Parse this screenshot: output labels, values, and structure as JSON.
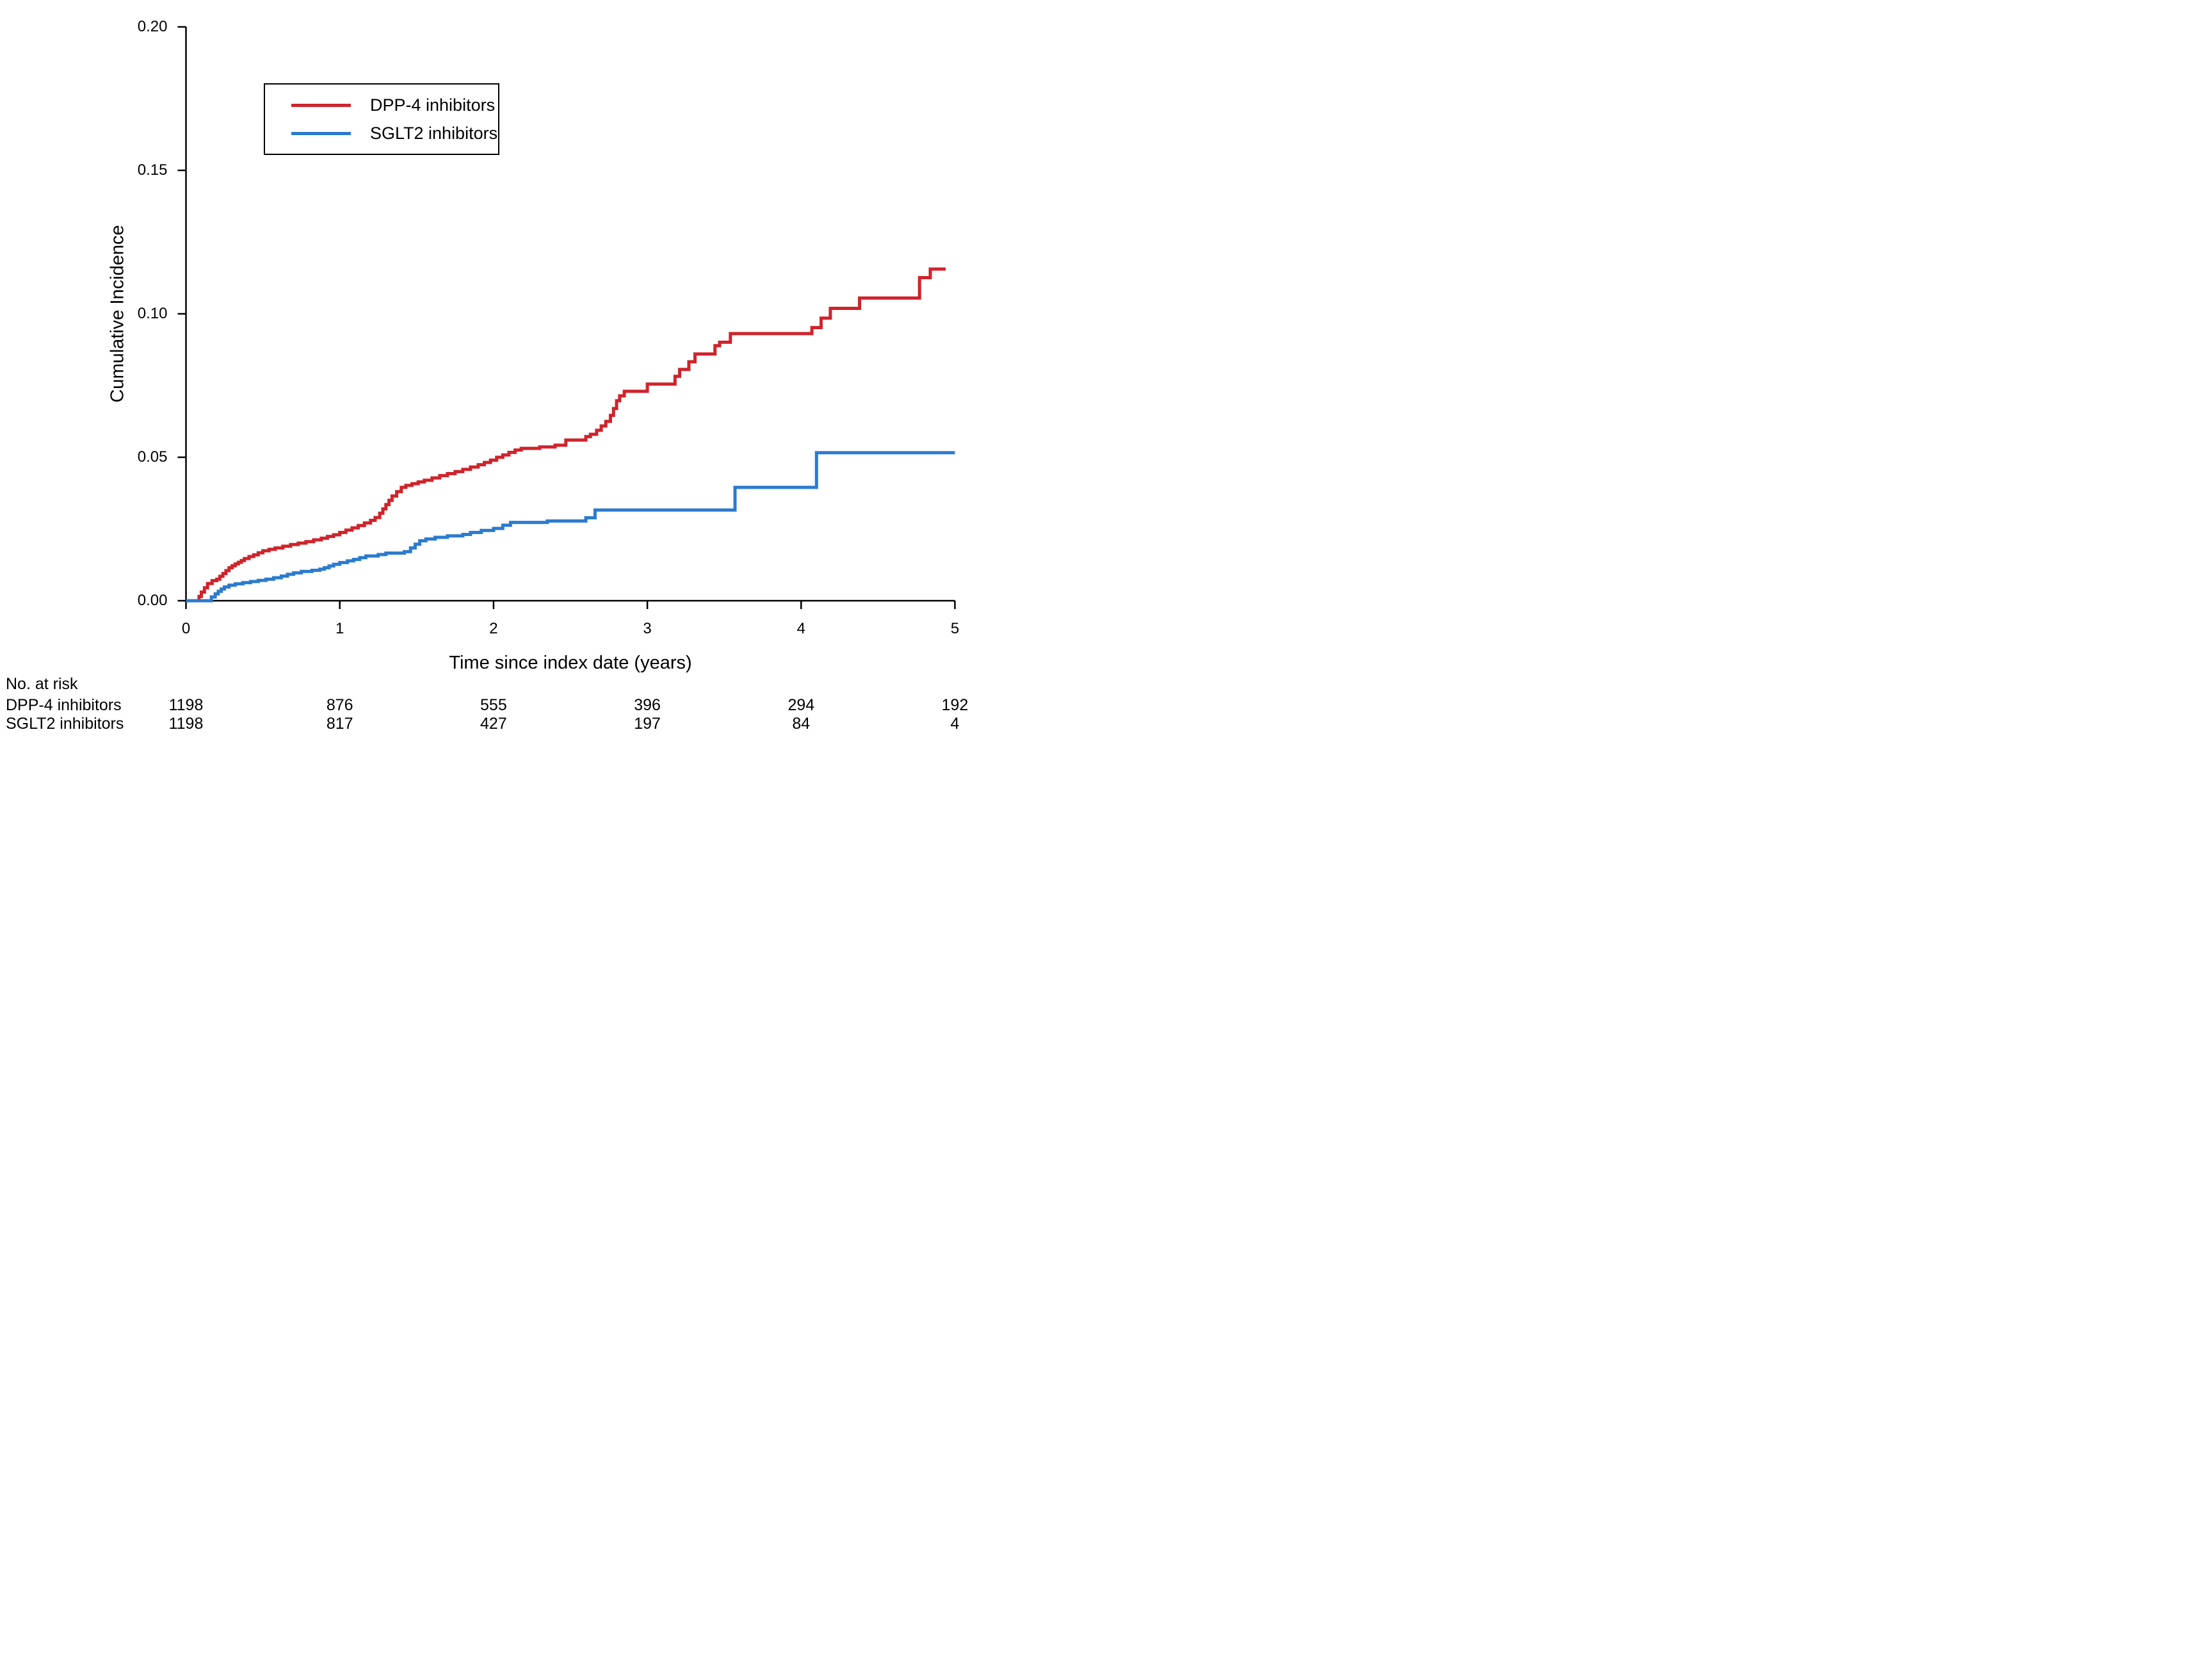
{
  "chart_data": {
    "type": "line",
    "subtype": "step-kaplan-meier",
    "title": "",
    "xlabel": "Time since index date (years)",
    "ylabel": "Cumulative Incidence",
    "xlim": [
      0,
      5
    ],
    "ylim": [
      0,
      0.2
    ],
    "xticks": [
      "0",
      "1",
      "2",
      "3",
      "4",
      "5"
    ],
    "yticks": [
      "0.00",
      "0.05",
      "0.10",
      "0.15",
      "0.20"
    ],
    "grid": false,
    "axis_color": "#000000",
    "legend": {
      "position": "upper-left-inside",
      "border": true
    },
    "series": [
      {
        "name": "DPP-4 inhibitors",
        "color": "#d0232b",
        "start": 0,
        "end": 4.94,
        "steps": [
          [
            0.085,
            0.0015
          ],
          [
            0.1,
            0.003
          ],
          [
            0.12,
            0.0045
          ],
          [
            0.14,
            0.006
          ],
          [
            0.17,
            0.007
          ],
          [
            0.2,
            0.0075
          ],
          [
            0.22,
            0.0085
          ],
          [
            0.24,
            0.0095
          ],
          [
            0.26,
            0.0105
          ],
          [
            0.28,
            0.0115
          ],
          [
            0.3,
            0.0122
          ],
          [
            0.32,
            0.0128
          ],
          [
            0.34,
            0.0134
          ],
          [
            0.36,
            0.014
          ],
          [
            0.38,
            0.0147
          ],
          [
            0.41,
            0.0154
          ],
          [
            0.44,
            0.016
          ],
          [
            0.47,
            0.0167
          ],
          [
            0.5,
            0.0174
          ],
          [
            0.54,
            0.0179
          ],
          [
            0.58,
            0.0184
          ],
          [
            0.63,
            0.019
          ],
          [
            0.68,
            0.0196
          ],
          [
            0.73,
            0.0201
          ],
          [
            0.78,
            0.0206
          ],
          [
            0.83,
            0.0212
          ],
          [
            0.88,
            0.0218
          ],
          [
            0.92,
            0.0224
          ],
          [
            0.96,
            0.023
          ],
          [
            1.0,
            0.0238
          ],
          [
            1.04,
            0.0246
          ],
          [
            1.08,
            0.0254
          ],
          [
            1.12,
            0.0262
          ],
          [
            1.16,
            0.0271
          ],
          [
            1.2,
            0.028
          ],
          [
            1.23,
            0.029
          ],
          [
            1.26,
            0.0305
          ],
          [
            1.28,
            0.032
          ],
          [
            1.3,
            0.0335
          ],
          [
            1.32,
            0.035
          ],
          [
            1.34,
            0.0365
          ],
          [
            1.37,
            0.038
          ],
          [
            1.4,
            0.0395
          ],
          [
            1.43,
            0.0402
          ],
          [
            1.47,
            0.0408
          ],
          [
            1.51,
            0.0414
          ],
          [
            1.55,
            0.042
          ],
          [
            1.6,
            0.0428
          ],
          [
            1.65,
            0.0436
          ],
          [
            1.7,
            0.0443
          ],
          [
            1.75,
            0.045
          ],
          [
            1.8,
            0.0458
          ],
          [
            1.85,
            0.0466
          ],
          [
            1.9,
            0.0474
          ],
          [
            1.94,
            0.0482
          ],
          [
            1.98,
            0.049
          ],
          [
            2.02,
            0.05
          ],
          [
            2.06,
            0.0508
          ],
          [
            2.1,
            0.0517
          ],
          [
            2.14,
            0.0525
          ],
          [
            2.18,
            0.0531
          ],
          [
            2.3,
            0.0536
          ],
          [
            2.4,
            0.0542
          ],
          [
            2.47,
            0.056
          ],
          [
            2.6,
            0.0572
          ],
          [
            2.63,
            0.058
          ],
          [
            2.67,
            0.0594
          ],
          [
            2.7,
            0.0609
          ],
          [
            2.73,
            0.0625
          ],
          [
            2.76,
            0.0646
          ],
          [
            2.78,
            0.067
          ],
          [
            2.8,
            0.0697
          ],
          [
            2.82,
            0.0714
          ],
          [
            2.85,
            0.073
          ],
          [
            3.0,
            0.0755
          ],
          [
            3.18,
            0.0782
          ],
          [
            3.21,
            0.0806
          ],
          [
            3.27,
            0.0833
          ],
          [
            3.31,
            0.086
          ],
          [
            3.44,
            0.0889
          ],
          [
            3.47,
            0.0901
          ],
          [
            3.54,
            0.0931
          ],
          [
            4.07,
            0.0952
          ],
          [
            4.13,
            0.0985
          ],
          [
            4.19,
            0.1019
          ],
          [
            4.38,
            0.1055
          ],
          [
            4.77,
            0.1126
          ],
          [
            4.84,
            0.1156
          ]
        ]
      },
      {
        "name": "SGLT2 inhibitors",
        "color": "#2b7bce",
        "start": 0,
        "end": 5.0,
        "steps": [
          [
            0.165,
            0.0013
          ],
          [
            0.19,
            0.0024
          ],
          [
            0.21,
            0.0033
          ],
          [
            0.23,
            0.0041
          ],
          [
            0.25,
            0.0048
          ],
          [
            0.28,
            0.0054
          ],
          [
            0.32,
            0.0059
          ],
          [
            0.37,
            0.0063
          ],
          [
            0.42,
            0.0067
          ],
          [
            0.47,
            0.0071
          ],
          [
            0.52,
            0.0075
          ],
          [
            0.57,
            0.008
          ],
          [
            0.62,
            0.0086
          ],
          [
            0.66,
            0.0092
          ],
          [
            0.7,
            0.0097
          ],
          [
            0.75,
            0.0102
          ],
          [
            0.82,
            0.0106
          ],
          [
            0.87,
            0.011
          ],
          [
            0.9,
            0.0115
          ],
          [
            0.93,
            0.0121
          ],
          [
            0.96,
            0.0127
          ],
          [
            1.0,
            0.0133
          ],
          [
            1.05,
            0.0139
          ],
          [
            1.09,
            0.0144
          ],
          [
            1.13,
            0.015
          ],
          [
            1.17,
            0.0156
          ],
          [
            1.25,
            0.0161
          ],
          [
            1.3,
            0.0166
          ],
          [
            1.42,
            0.0171
          ],
          [
            1.46,
            0.0184
          ],
          [
            1.49,
            0.0197
          ],
          [
            1.52,
            0.0209
          ],
          [
            1.56,
            0.0215
          ],
          [
            1.62,
            0.0221
          ],
          [
            1.7,
            0.0226
          ],
          [
            1.8,
            0.0231
          ],
          [
            1.85,
            0.0238
          ],
          [
            1.92,
            0.0245
          ],
          [
            2.0,
            0.0252
          ],
          [
            2.06,
            0.0263
          ],
          [
            2.11,
            0.0273
          ],
          [
            2.35,
            0.0278
          ],
          [
            2.6,
            0.0289
          ],
          [
            2.66,
            0.0316
          ],
          [
            3.57,
            0.0395
          ],
          [
            4.1,
            0.0516
          ]
        ]
      }
    ],
    "risk_table": {
      "header": "No. at risk",
      "times": [
        0,
        1,
        2,
        3,
        4,
        5
      ],
      "rows": [
        {
          "label": "DPP-4 inhibitors",
          "counts": [
            "1198",
            "876",
            "555",
            "396",
            "294",
            "192"
          ]
        },
        {
          "label": "SGLT2 inhibitors",
          "counts": [
            "1198",
            "817",
            "427",
            "197",
            "84",
            "4"
          ]
        }
      ]
    }
  }
}
